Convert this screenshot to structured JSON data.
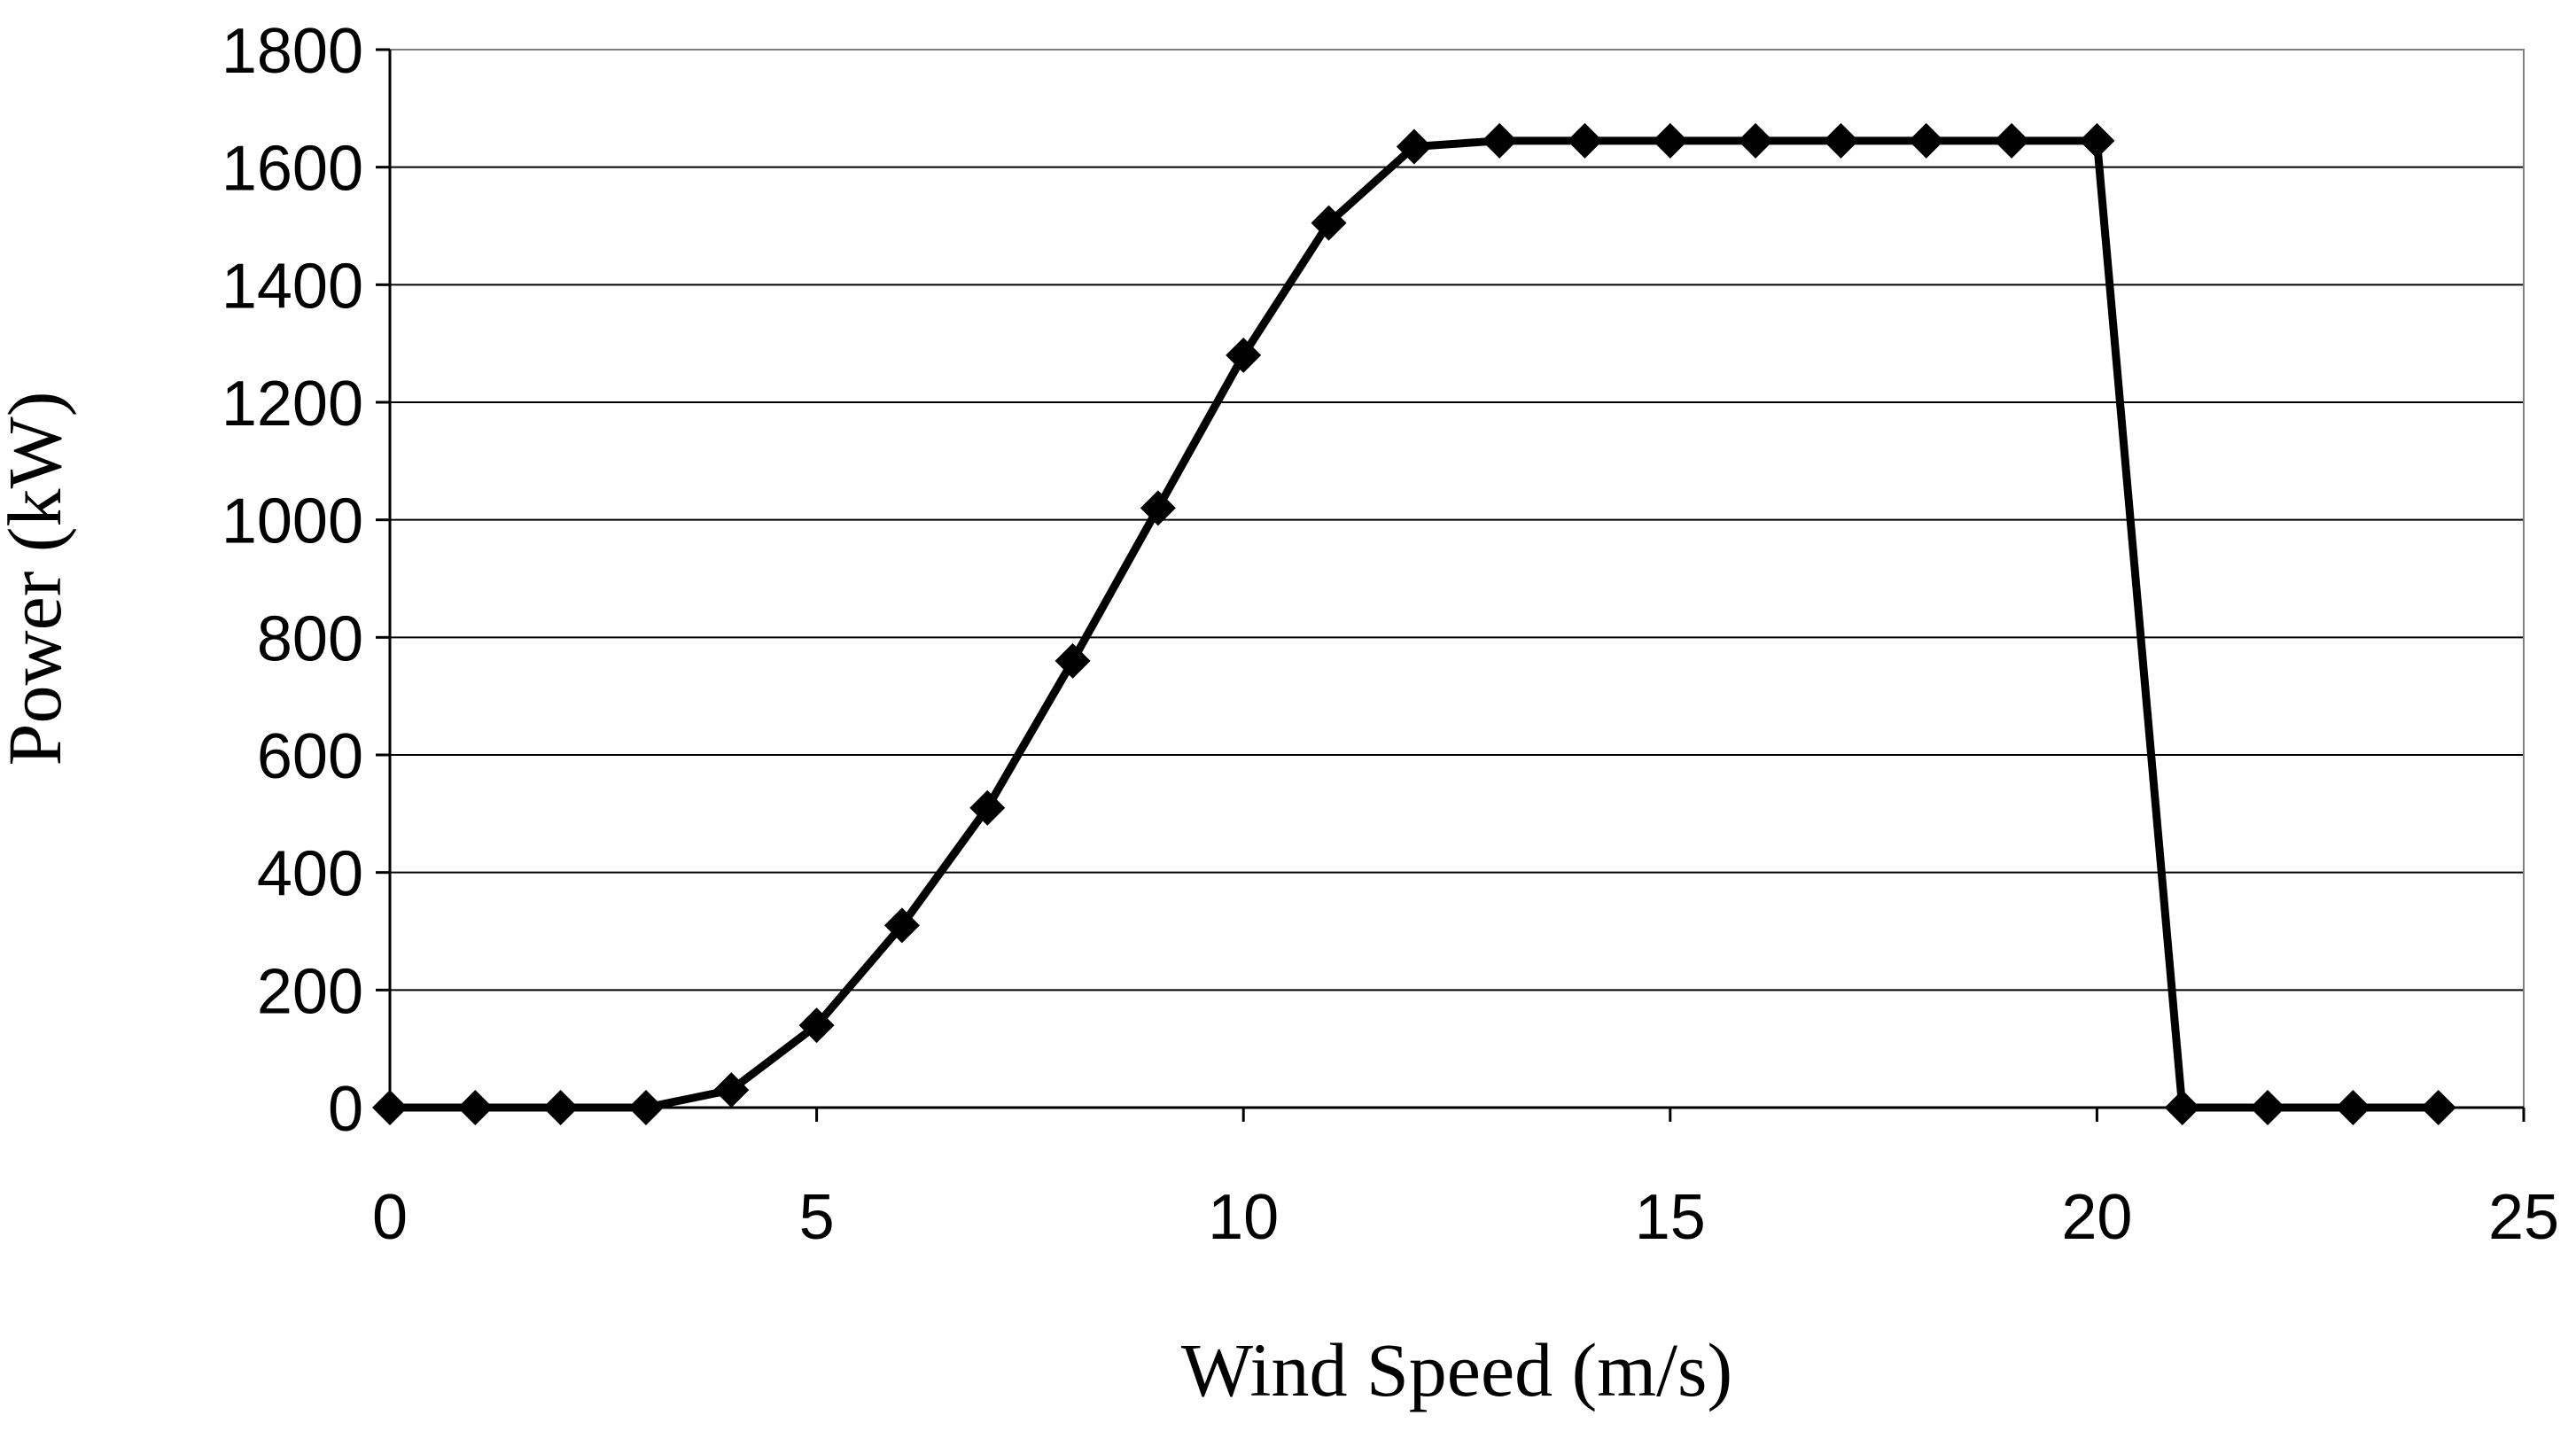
{
  "chart_data": {
    "type": "line",
    "title": "",
    "xlabel": "Wind Speed (m/s)",
    "ylabel": "Power (kW)",
    "xlim": [
      0,
      25
    ],
    "ylim": [
      0,
      1800
    ],
    "xticks": [
      0,
      5,
      10,
      15,
      20,
      25
    ],
    "yticks": [
      0,
      200,
      400,
      600,
      800,
      1000,
      1200,
      1400,
      1600,
      1800
    ],
    "grid": "horizontal",
    "legend": "none",
    "series": [
      {
        "marker": "diamond",
        "color": "#000000",
        "x": [
          0,
          1,
          2,
          3,
          4,
          5,
          6,
          7,
          8,
          9,
          10,
          11,
          12,
          13,
          14,
          15,
          16,
          17,
          18,
          19,
          20,
          21,
          22,
          23,
          24
        ],
        "y": [
          0,
          0,
          0,
          0,
          30,
          140,
          310,
          510,
          760,
          1020,
          1280,
          1505,
          1635,
          1645,
          1645,
          1645,
          1645,
          1645,
          1645,
          1645,
          1645,
          0,
          0,
          0,
          0
        ]
      }
    ]
  }
}
